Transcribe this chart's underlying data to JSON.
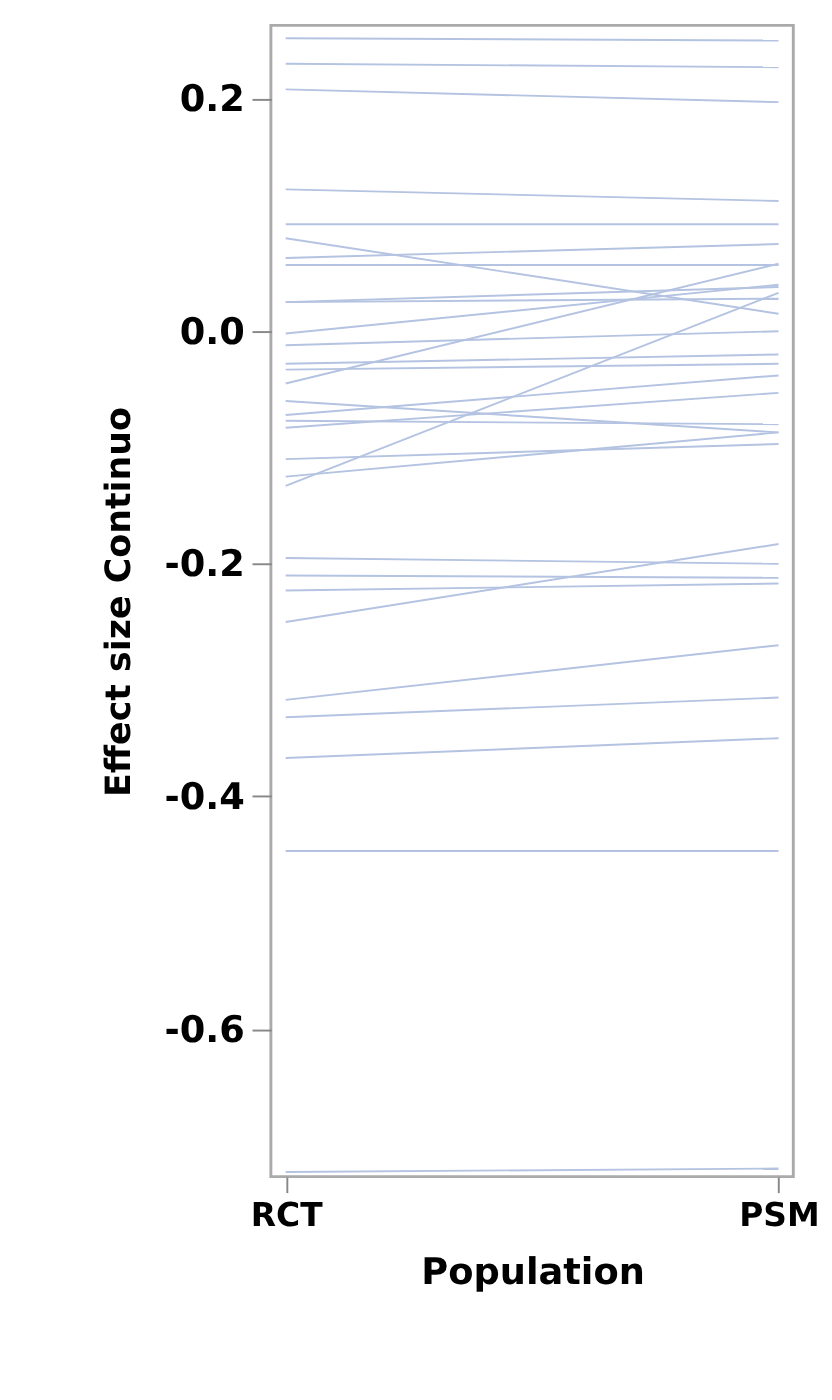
{
  "chart_data": {
    "type": "line",
    "xlabel": "Population",
    "ylabel": "Effect size Continuo",
    "categories": [
      "RCT",
      "PSM"
    ],
    "ylim": [
      -0.727,
      0.263
    ],
    "yticks": [
      {
        "value": 0.2,
        "label": "0.2"
      },
      {
        "value": 0,
        "label": "0.0"
      },
      {
        "value": -0.2,
        "label": "-0.2"
      },
      {
        "value": -0.4,
        "label": "-0.4"
      },
      {
        "value": -0.6,
        "label": "-0.6"
      }
    ],
    "grid": false,
    "line_style": "solid",
    "marker": "none",
    "series": [
      {
        "color": "#b4c3e1",
        "values": [
          0.252,
          0.25
        ]
      },
      {
        "color": "#b4c3e1",
        "values": [
          0.23,
          0.227
        ]
      },
      {
        "color": "#b4c3e1",
        "values": [
          0.208,
          0.197
        ]
      },
      {
        "color": "#b4c3e1",
        "values": [
          0.122,
          0.112
        ]
      },
      {
        "color": "#b4c3e1",
        "values": [
          0.092,
          0.092
        ]
      },
      {
        "color": "#b4c3e1",
        "values": [
          0.08,
          0.015
        ]
      },
      {
        "color": "#b4c3e1",
        "values": [
          0.063,
          0.075
        ]
      },
      {
        "color": "#b4c3e1",
        "values": [
          0.057,
          0.057
        ]
      },
      {
        "color": "#b4c3e1",
        "values": [
          0.025,
          0.028
        ]
      },
      {
        "color": "#b4c3e1",
        "values": [
          0.025,
          0.038
        ]
      },
      {
        "color": "#b4c3e1",
        "values": [
          -0.002,
          0.04
        ]
      },
      {
        "color": "#b4c3e1",
        "values": [
          -0.012,
          0.0
        ]
      },
      {
        "color": "#b4c3e1",
        "values": [
          -0.028,
          -0.02
        ]
      },
      {
        "color": "#b4c3e1",
        "values": [
          -0.033,
          -0.028
        ]
      },
      {
        "color": "#b4c3e1",
        "values": [
          -0.045,
          0.058
        ]
      },
      {
        "color": "#b4c3e1",
        "values": [
          -0.06,
          -0.087
        ]
      },
      {
        "color": "#b4c3e1",
        "values": [
          -0.072,
          -0.038
        ]
      },
      {
        "color": "#b4c3e1",
        "values": [
          -0.077,
          -0.08
        ]
      },
      {
        "color": "#b4c3e1",
        "values": [
          -0.083,
          -0.053
        ]
      },
      {
        "color": "#b4c3e1",
        "values": [
          -0.11,
          -0.097
        ]
      },
      {
        "color": "#b4c3e1",
        "values": [
          -0.125,
          -0.087
        ]
      },
      {
        "color": "#b4c3e1",
        "values": [
          -0.133,
          0.033
        ]
      },
      {
        "color": "#b4c3e1",
        "values": [
          -0.195,
          -0.2
        ]
      },
      {
        "color": "#b4c3e1",
        "values": [
          -0.21,
          -0.212
        ]
      },
      {
        "color": "#b4c3e1",
        "values": [
          -0.223,
          -0.217
        ]
      },
      {
        "color": "#b4c3e1",
        "values": [
          -0.25,
          -0.183
        ]
      },
      {
        "color": "#b4c3e1",
        "values": [
          -0.317,
          -0.27
        ]
      },
      {
        "color": "#b4c3e1",
        "values": [
          -0.332,
          -0.315
        ]
      },
      {
        "color": "#b4c3e1",
        "values": [
          -0.367,
          -0.35
        ]
      },
      {
        "color": "#b4c3e1",
        "values": [
          -0.447,
          -0.447
        ]
      },
      {
        "color": "#b4c3e1",
        "values": [
          -0.723,
          -0.72
        ]
      }
    ]
  }
}
